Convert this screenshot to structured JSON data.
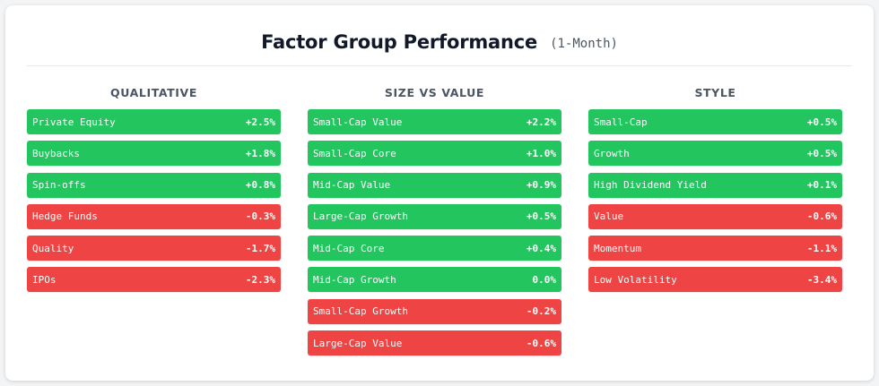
{
  "title": "Factor Group Performance",
  "subtitle": "(1-Month)",
  "colors": {
    "positive": "#22c55e",
    "negative": "#ef4444"
  },
  "chart_data": {
    "type": "table",
    "title": "Factor Group Performance",
    "subtitle": "(1-Month)",
    "groups": [
      {
        "name": "QUALITATIVE",
        "items": [
          {
            "label": "Private Equity",
            "value": 2.5,
            "display": "+2.5%"
          },
          {
            "label": "Buybacks",
            "value": 1.8,
            "display": "+1.8%"
          },
          {
            "label": "Spin-offs",
            "value": 0.8,
            "display": "+0.8%"
          },
          {
            "label": "Hedge Funds",
            "value": -0.3,
            "display": "-0.3%"
          },
          {
            "label": "Quality",
            "value": -1.7,
            "display": "-1.7%"
          },
          {
            "label": "IPOs",
            "value": -2.3,
            "display": "-2.3%"
          }
        ]
      },
      {
        "name": "SIZE VS VALUE",
        "items": [
          {
            "label": "Small-Cap Value",
            "value": 2.2,
            "display": "+2.2%"
          },
          {
            "label": "Small-Cap Core",
            "value": 1.0,
            "display": "+1.0%"
          },
          {
            "label": "Mid-Cap Value",
            "value": 0.9,
            "display": "+0.9%"
          },
          {
            "label": "Large-Cap Growth",
            "value": 0.5,
            "display": "+0.5%"
          },
          {
            "label": "Mid-Cap Core",
            "value": 0.4,
            "display": "+0.4%"
          },
          {
            "label": "Mid-Cap Growth",
            "value": 0.0,
            "display": "0.0%"
          },
          {
            "label": "Small-Cap Growth",
            "value": -0.2,
            "display": "-0.2%"
          },
          {
            "label": "Large-Cap Value",
            "value": -0.6,
            "display": "-0.6%"
          }
        ]
      },
      {
        "name": "STYLE",
        "items": [
          {
            "label": "Small-Cap",
            "value": 0.5,
            "display": "+0.5%"
          },
          {
            "label": "Growth",
            "value": 0.5,
            "display": "+0.5%"
          },
          {
            "label": "High Dividend Yield",
            "value": 0.1,
            "display": "+0.1%"
          },
          {
            "label": "Value",
            "value": -0.6,
            "display": "-0.6%"
          },
          {
            "label": "Momentum",
            "value": -1.1,
            "display": "-1.1%"
          },
          {
            "label": "Low Volatility",
            "value": -3.4,
            "display": "-3.4%"
          }
        ]
      }
    ]
  }
}
